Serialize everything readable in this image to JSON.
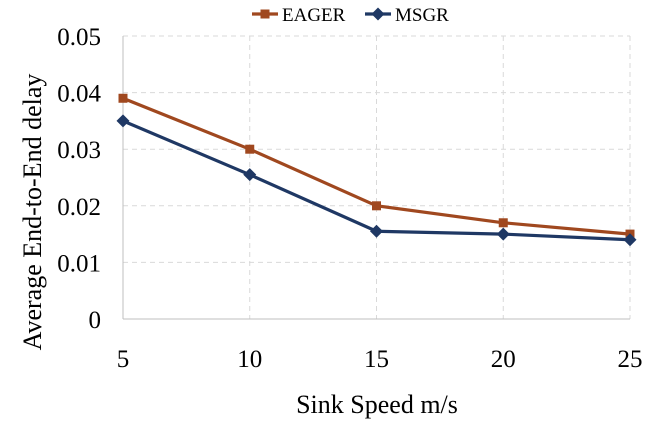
{
  "chart_data": {
    "type": "line",
    "title": "",
    "xlabel": "Sink Speed m/s",
    "ylabel": "Average End-to-End delay",
    "x": [
      5,
      10,
      15,
      20,
      25
    ],
    "x_tick_labels": [
      "5",
      "10",
      "15",
      "20",
      "25"
    ],
    "ylim": [
      0,
      0.05
    ],
    "y_ticks": [
      0,
      0.01,
      0.02,
      0.03,
      0.04,
      0.05
    ],
    "y_tick_labels": [
      "0",
      "0.01",
      "0.02",
      "0.03",
      "0.04",
      "0.05"
    ],
    "grid": true,
    "legend_position": "top",
    "series": [
      {
        "name": "EAGER",
        "values": [
          0.039,
          0.03,
          0.02,
          0.017,
          0.015
        ],
        "color": "#a0481f",
        "marker": "square"
      },
      {
        "name": "MSGR",
        "values": [
          0.035,
          0.0255,
          0.0155,
          0.015,
          0.014
        ],
        "color": "#1f3864",
        "marker": "diamond"
      }
    ]
  }
}
